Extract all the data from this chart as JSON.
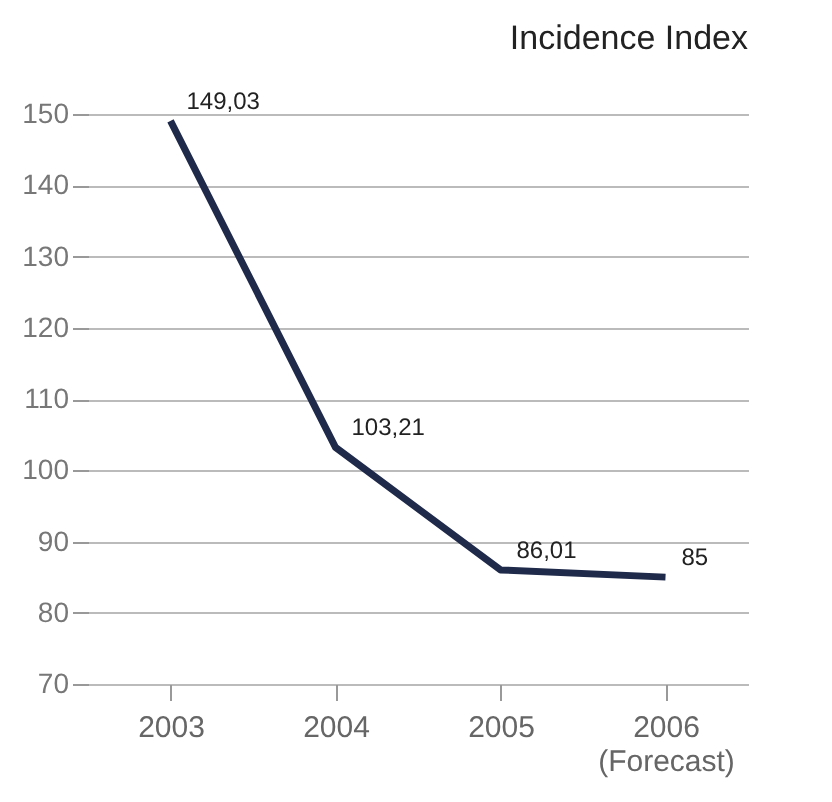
{
  "chart_data": {
    "type": "line",
    "title": "Incidence Index",
    "categories": [
      "2003",
      "2004",
      "2005",
      "2006\n(Forecast)"
    ],
    "series": [
      {
        "color": "#1f2a4a",
        "values": [
          149.03,
          103.21,
          86.01,
          85
        ],
        "value_labels": [
          "149,03",
          "103,21",
          "86,01",
          "85"
        ]
      }
    ],
    "ylim": [
      70,
      150
    ],
    "yticks": [
      70,
      80,
      90,
      100,
      110,
      120,
      130,
      140,
      150
    ],
    "grid": "y",
    "marker": "none",
    "line_style": "solid"
  }
}
